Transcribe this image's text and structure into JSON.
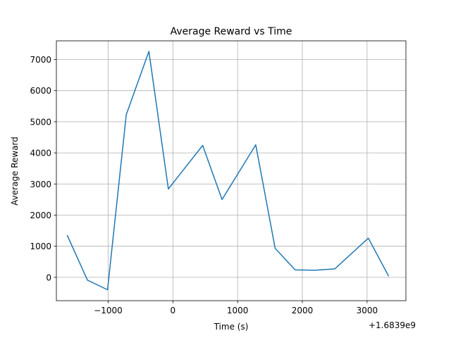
{
  "chart_data": {
    "type": "line",
    "title": "Average Reward vs Time",
    "xlabel": "Time (s)",
    "ylabel": "Average Reward",
    "x_offset_label": "+1.6839e9",
    "xlim": [
      -1800,
      3600
    ],
    "ylim": [
      -750,
      7600
    ],
    "xticks": [
      -1000,
      0,
      1000,
      2000,
      3000
    ],
    "xtick_labels": [
      "−1000",
      "0",
      "1000",
      "2000",
      "3000"
    ],
    "yticks": [
      0,
      1000,
      2000,
      3000,
      4000,
      5000,
      6000,
      7000
    ],
    "ytick_labels": [
      "0",
      "1000",
      "2000",
      "3000",
      "4000",
      "5000",
      "6000",
      "7000"
    ],
    "grid": true,
    "line_color": "#1f77b4",
    "series": [
      {
        "x": [
          -1630,
          -1320,
          -1010,
          -720,
          -370,
          -70,
          460,
          760,
          1280,
          1580,
          1890,
          2190,
          2500,
          3020,
          3330
        ],
        "values": [
          1340,
          -90,
          -400,
          5230,
          7260,
          2840,
          4240,
          2500,
          4260,
          930,
          240,
          230,
          270,
          1260,
          50
        ]
      }
    ]
  }
}
